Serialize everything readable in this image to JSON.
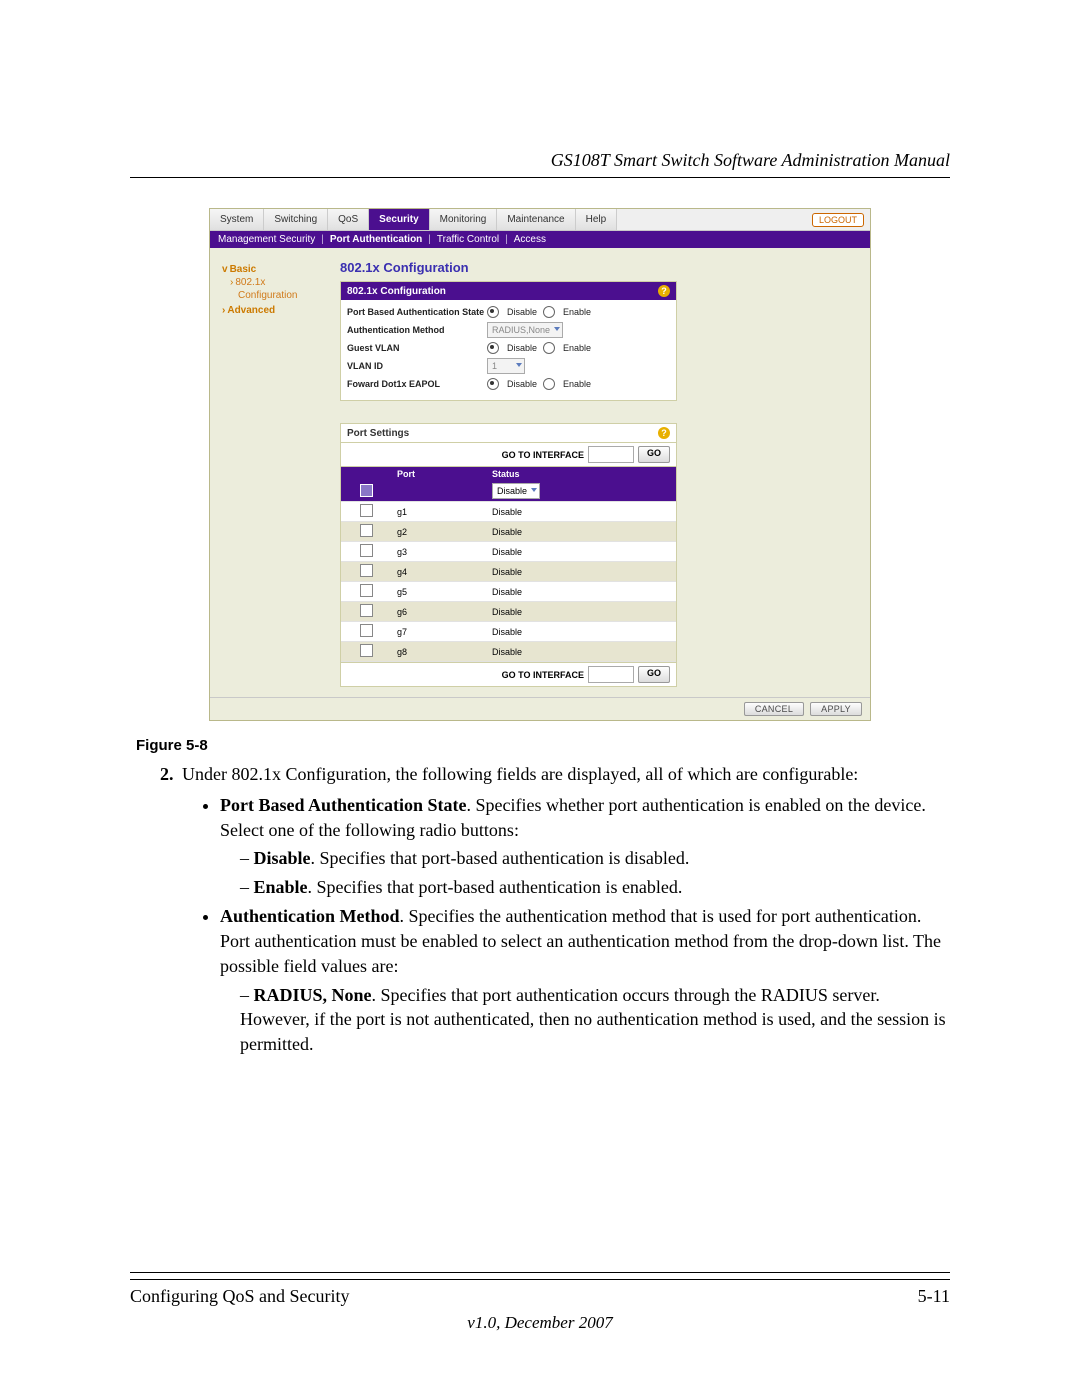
{
  "doc": {
    "running_head": "GS108T Smart Switch Software Administration Manual",
    "figure_caption": "Figure 5-8",
    "list_number": "2.",
    "intro": "Under 802.1x Configuration, the following fields are displayed, all of which are configurable:",
    "b1_bold": "Port Based Authentication State",
    "b1_tail": ". Specifies whether port authentication is enabled on the device. Select one of the following radio buttons:",
    "d1_bold": "Disable",
    "d1_tail": ". Specifies that port-based authentication is disabled.",
    "d2_bold": "Enable",
    "d2_tail": ". Specifies that port-based authentication is enabled.",
    "b2_bold": "Authentication Method",
    "b2_tail": ". Specifies the authentication method that is used for port authentication. Port authentication must be enabled to select an authentication method from the drop-down list. The possible field values are:",
    "d3_bold": "RADIUS, None",
    "d3_tail": ". Specifies that port authentication occurs through the RADIUS server. However, if the port is not authenticated, then no authentication method is used, and the session is permitted.",
    "footer_left": "Configuring QoS and Security",
    "footer_right": "5-11",
    "version": "v1.0, December 2007"
  },
  "ui": {
    "tabs": {
      "t1": "System",
      "t2": "Switching",
      "t3": "QoS",
      "t4": "Security",
      "t5": "Monitoring",
      "t6": "Maintenance",
      "t7": "Help"
    },
    "logout": "LOGOUT",
    "subtabs": {
      "s1": "Management Security",
      "s2": "Port Authentication",
      "s3": "Traffic Control",
      "s4": "Access"
    },
    "side": {
      "basic": "Basic",
      "cfg": "802.1x Configuration",
      "adv": "Advanced"
    },
    "title": "802.1x Configuration",
    "panel_title": "802.1x Configuration",
    "rows": {
      "r1": "Port Based Authentication State",
      "r2": "Authentication Method",
      "r3": "Guest VLAN",
      "r4": "VLAN ID",
      "r5": "Foward Dot1x EAPOL"
    },
    "radio": {
      "disable": "Disable",
      "enable": "Enable"
    },
    "auth_method": "RADIUS,None",
    "vlan_id": "1",
    "port_title": "Port Settings",
    "goto": "GO TO INTERFACE",
    "go": "GO",
    "col_port": "Port",
    "col_status": "Status",
    "filter_status": "Disable",
    "ports": [
      {
        "p": "g1",
        "s": "Disable"
      },
      {
        "p": "g2",
        "s": "Disable"
      },
      {
        "p": "g3",
        "s": "Disable"
      },
      {
        "p": "g4",
        "s": "Disable"
      },
      {
        "p": "g5",
        "s": "Disable"
      },
      {
        "p": "g6",
        "s": "Disable"
      },
      {
        "p": "g7",
        "s": "Disable"
      },
      {
        "p": "g8",
        "s": "Disable"
      }
    ],
    "cancel": "CANCEL",
    "apply": "APPLY"
  },
  "colors": {
    "purple": "#4b0f8f",
    "panel_bg": "#eceddc",
    "accent_orange": "#cc6600"
  }
}
